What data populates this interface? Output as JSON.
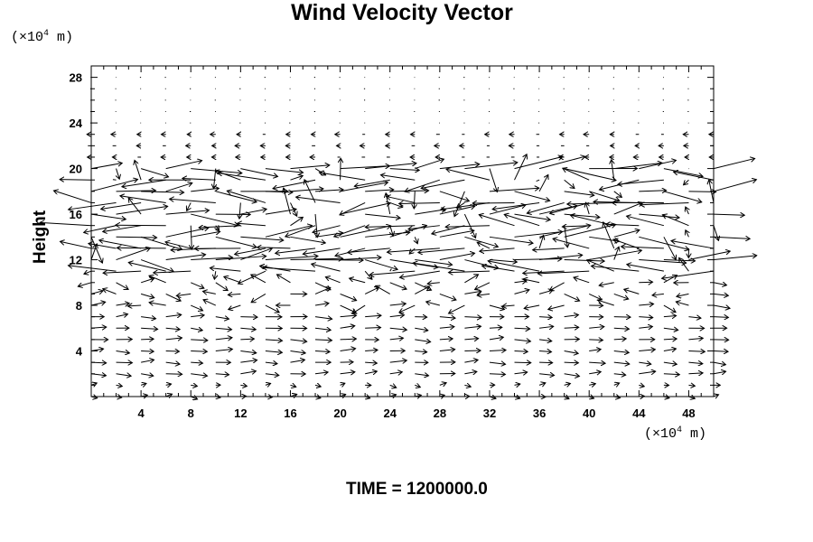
{
  "chart_data": {
    "type": "vector_field",
    "title": "Wind Velocity Vector",
    "ylabel": "Height",
    "y_unit_prefix": "(×10",
    "y_unit_exp": "4",
    "y_unit_suffix": " m)",
    "x_unit_prefix": "(×10",
    "x_unit_exp": "4",
    "x_unit_suffix": " m)",
    "xlim": [
      0,
      50
    ],
    "ylim": [
      0,
      29
    ],
    "x_ticks": [
      4,
      8,
      12,
      16,
      20,
      24,
      28,
      32,
      36,
      40,
      44,
      48
    ],
    "x_tick_labels": [
      "4",
      "8",
      "12",
      "16",
      "20",
      "24",
      "28",
      "32",
      "36",
      "40",
      "44",
      "48"
    ],
    "y_ticks": [
      4,
      8,
      12,
      16,
      20,
      24,
      28
    ],
    "y_tick_labels": [
      "4",
      "8",
      "12",
      "16",
      "20",
      "24",
      "28"
    ],
    "grid": false,
    "field": {
      "x_start": 0,
      "x_step": 2,
      "x_count": 26,
      "y_start": 0,
      "y_step": 1,
      "y_count": 29,
      "description_bands": [
        {
          "y_range": [
            0,
            10
          ],
          "direction": "eastward",
          "magnitude": "weak"
        },
        {
          "y_range": [
            11,
            20
          ],
          "direction": "mixed",
          "magnitude": "strong"
        },
        {
          "y_range": [
            21,
            28
          ],
          "direction": "westward",
          "magnitude": "very weak"
        }
      ]
    },
    "footer": "TIME = 1200000.0"
  }
}
